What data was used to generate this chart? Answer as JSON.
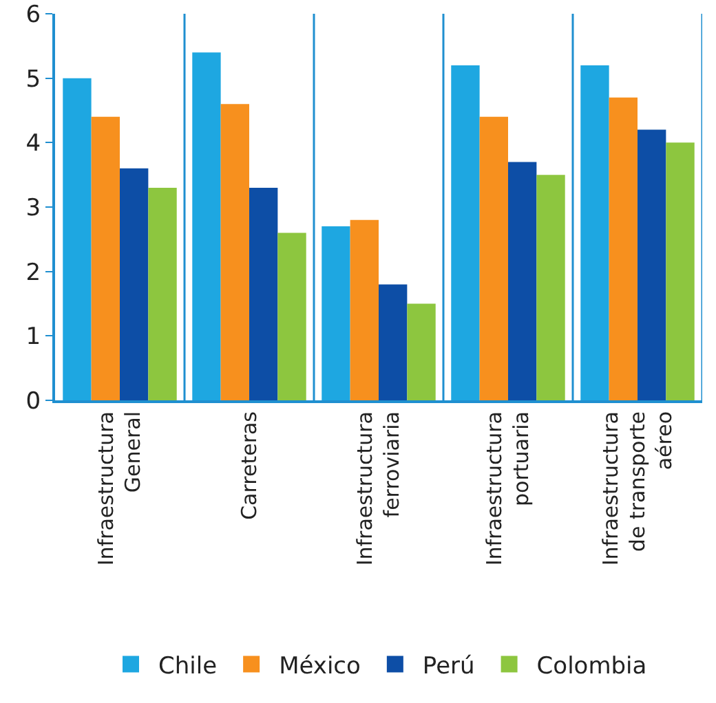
{
  "chart_data": {
    "type": "bar",
    "categories": [
      "Infraestructura\nGeneral",
      "Carreteras",
      "Infraestructura\nferroviaria",
      "Infraestructura\nportuaria",
      "Infraestructura\nde transporte\naéreo"
    ],
    "series": [
      {
        "name": "Chile",
        "color": "#1ea7e1",
        "values": [
          5.0,
          5.4,
          2.7,
          5.2,
          5.2
        ]
      },
      {
        "name": "México",
        "color": "#f7901e",
        "values": [
          4.4,
          4.6,
          2.8,
          4.4,
          4.7
        ]
      },
      {
        "name": "Perú",
        "color": "#0d4ea6",
        "values": [
          3.6,
          3.3,
          1.8,
          3.7,
          4.2
        ]
      },
      {
        "name": "Colombia",
        "color": "#8dc63f",
        "values": [
          3.3,
          2.6,
          1.5,
          3.5,
          4.0
        ]
      }
    ],
    "ylim": [
      0,
      6
    ],
    "yticks": [
      0,
      1,
      2,
      3,
      4,
      5,
      6
    ],
    "grid": "x",
    "legend": "bottom"
  }
}
